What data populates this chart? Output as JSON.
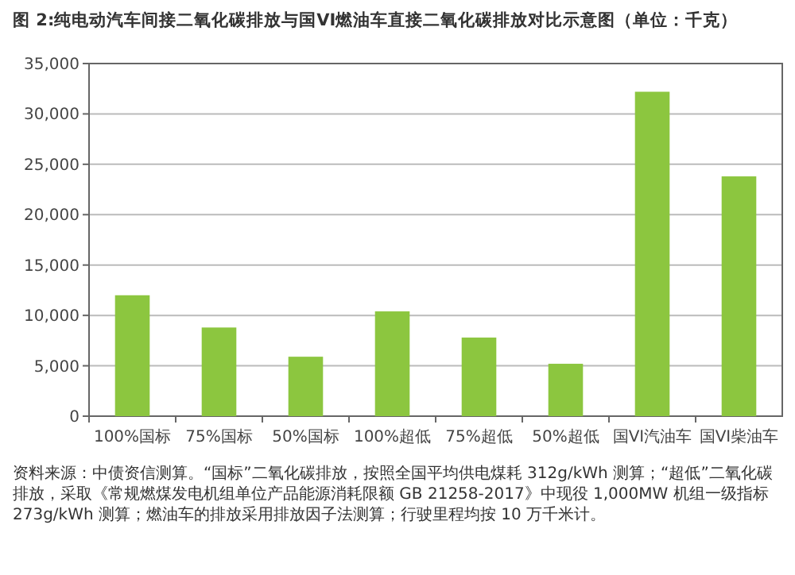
{
  "chart_data": {
    "type": "bar",
    "title": "图 2:纯电动汽车间接二氧化碳排放与国VI燃油车直接二氧化碳排放对比示意图（单位：千克）",
    "categories": [
      "100%国标",
      "75%国标",
      "50%国标",
      "100%超低",
      "75%超低",
      "50%超低",
      "国VI汽油车",
      "国VI柴油车"
    ],
    "values": [
      12000,
      8800,
      5900,
      10400,
      7800,
      5200,
      32200,
      23800
    ],
    "color": "#8cc63f",
    "ylim": [
      0,
      35000
    ],
    "yticks": [
      {
        "value": 0,
        "label": "0"
      },
      {
        "value": 5000,
        "label": "5,000"
      },
      {
        "value": 10000,
        "label": "10,000"
      },
      {
        "value": 15000,
        "label": "15,000"
      },
      {
        "value": 20000,
        "label": "20,000"
      },
      {
        "value": 25000,
        "label": "25,000"
      },
      {
        "value": 30000,
        "label": "30,000"
      },
      {
        "value": 35000,
        "label": "35,000"
      }
    ],
    "grid": "y",
    "annotations": [
      "资料来源：中债资信测算。“国标”二氧化碳排放，按照全国平均供电煤耗 312g/kWh 测算；“超低”二氧化碳排放，采取《常规燃煤发电机组单位产品能源消耗限额 GB 21258-2017》中现役 1,000MW 机组一级指标 273g/kWh 测算；燃油车的排放采用排放因子法测算；行驶里程均按 10 万千米计。"
    ]
  }
}
